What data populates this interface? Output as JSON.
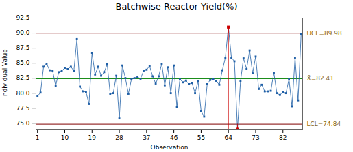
{
  "chart_data": {
    "type": "line",
    "title": "Batchwise Reactor Yield(%)",
    "xlabel": "Observation",
    "ylabel": "Individual Value",
    "x": [
      1,
      2,
      3,
      4,
      5,
      6,
      7,
      8,
      9,
      10,
      11,
      12,
      13,
      14,
      15,
      16,
      17,
      18,
      19,
      20,
      21,
      22,
      23,
      24,
      25,
      26,
      27,
      28,
      29,
      30,
      31,
      32,
      33,
      34,
      35,
      36,
      37,
      38,
      39,
      40,
      41,
      42,
      43,
      44,
      45,
      46,
      47,
      48,
      49,
      50,
      51,
      52,
      53,
      54,
      55,
      56,
      57,
      58,
      59,
      60,
      61,
      62,
      63,
      64,
      65,
      66,
      67,
      68,
      69,
      70,
      71,
      72,
      73,
      74,
      75,
      76,
      77,
      78,
      79,
      80,
      81,
      82,
      83,
      84,
      85,
      86,
      87,
      88
    ],
    "values": [
      79.5,
      80.1,
      84.4,
      84.9,
      83.8,
      83.7,
      81.2,
      83.5,
      83.7,
      84.2,
      84.0,
      84.4,
      83.7,
      89.0,
      81.1,
      80.3,
      80.2,
      78.2,
      86.7,
      83.1,
      84.4,
      82.9,
      83.5,
      84.8,
      79.9,
      80.0,
      82.9,
      75.8,
      84.6,
      82.5,
      79.9,
      82.3,
      82.5,
      82.7,
      82.4,
      83.7,
      83.9,
      84.5,
      82.8,
      81.6,
      82.8,
      84.9,
      81.3,
      84.3,
      80.0,
      84.6,
      77.7,
      82.3,
      81.8,
      82.1,
      81.5,
      81.7,
      80.0,
      82.0,
      77.0,
      76.1,
      81.5,
      82.2,
      82.3,
      82.0,
      81.4,
      83.8,
      85.9,
      91.0,
      85.9,
      85.3,
      74.0,
      82.0,
      85.8,
      84.0,
      87.1,
      83.3,
      86.1,
      80.7,
      81.4,
      80.3,
      80.3,
      80.4,
      83.4,
      80.0,
      79.7,
      80.2,
      80.0,
      82.3,
      77.8,
      85.9,
      78.8,
      89.8
    ],
    "color": "#1f5fa6",
    "marker": "square",
    "out_color": "#cc0000",
    "control_lines": [
      {
        "kind": "ucl",
        "value": 89.98,
        "label": "UCL=89.98",
        "color": "#800000"
      },
      {
        "kind": "mean",
        "value": 82.41,
        "label": "X̄=82.41",
        "color": "#008000"
      },
      {
        "kind": "lcl",
        "value": 74.84,
        "label": "LCL=74.84",
        "color": "#800000"
      }
    ],
    "label_color": "#8b6914",
    "segments": [
      {
        "x": 64,
        "y1": 74.0,
        "y2": 91.0,
        "color": "#cc0000"
      }
    ],
    "xlim": [
      0.5,
      88.5
    ],
    "xticks": [
      1,
      10,
      19,
      28,
      37,
      46,
      55,
      64,
      73,
      82
    ],
    "ylim": [
      74.0,
      92.5
    ],
    "yticks": [
      {
        "value": 75.0,
        "label": "75.0"
      },
      77.5,
      {
        "value": 80.0,
        "label": "80.0"
      },
      82.5,
      {
        "value": 85.0,
        "label": "85.0"
      },
      87.5,
      {
        "value": 90.0,
        "label": "90.0"
      },
      92.5
    ],
    "grid": false
  }
}
